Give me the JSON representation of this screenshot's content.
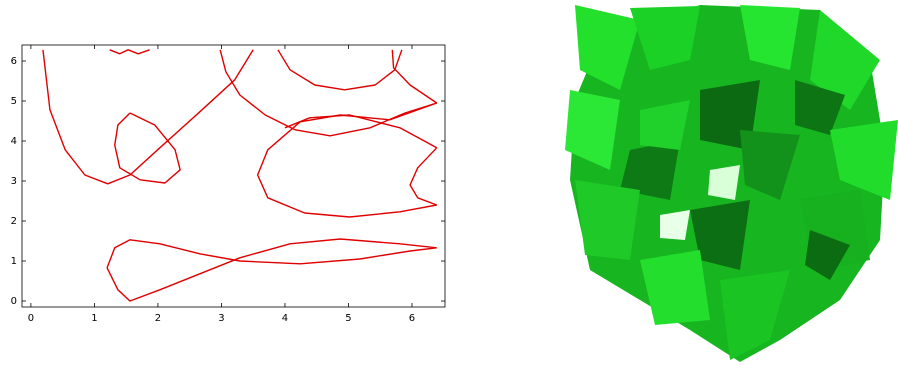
{
  "chart_data": {
    "type": "line",
    "xlim": [
      -0.14,
      6.52
    ],
    "ylim": [
      -0.15,
      6.4
    ],
    "xticks": [
      0,
      1,
      2,
      3,
      4,
      5,
      6
    ],
    "yticks": [
      0,
      1,
      2,
      3,
      4,
      5,
      6
    ],
    "series": [
      {
        "color": "#e00000",
        "x": [
          0.19,
          0.3,
          0.54,
          0.85,
          1.21,
          1.56,
          2.03,
          2.66,
          3.21,
          3.5
        ],
        "values": [
          6.28,
          4.78,
          3.78,
          3.15,
          2.93,
          3.15,
          3.83,
          4.73,
          5.53,
          6.28
        ]
      },
      {
        "color": "#e00000",
        "x": [
          1.56,
          1.95,
          2.27,
          2.35,
          2.11,
          1.72,
          1.4,
          1.32,
          1.37,
          1.56
        ],
        "values": [
          4.7,
          4.4,
          3.78,
          3.28,
          2.95,
          3.03,
          3.33,
          3.9,
          4.4,
          4.7
        ]
      },
      {
        "color": "#e00000",
        "x": [
          1.24,
          1.4,
          1.53,
          1.69,
          1.87
        ],
        "values": [
          6.28,
          6.18,
          6.28,
          6.18,
          6.28
        ]
      },
      {
        "color": "#e00000",
        "x": [
          2.98,
          3.07,
          3.29,
          3.69,
          4.16,
          4.71,
          5.34,
          5.89,
          6.39
        ],
        "values": [
          6.28,
          5.73,
          5.15,
          4.65,
          4.28,
          4.13,
          4.33,
          4.7,
          4.95
        ]
      },
      {
        "color": "#e00000",
        "x": [
          3.89,
          4.08,
          4.47,
          4.94,
          5.42,
          5.73,
          5.84
        ],
        "values": [
          6.28,
          5.78,
          5.4,
          5.28,
          5.4,
          5.78,
          6.28
        ]
      },
      {
        "color": "#e00000",
        "x": [
          5.69,
          5.71,
          5.97,
          6.39
        ],
        "values": [
          6.28,
          5.83,
          5.4,
          4.95
        ]
      },
      {
        "color": "#e00000",
        "x": [
          6.39,
          5.65,
          4.87,
          4.24,
          3.73,
          3.57,
          3.73,
          4.31,
          5.02,
          5.81,
          6.39
        ],
        "values": [
          4.95,
          4.53,
          4.65,
          4.48,
          3.78,
          3.15,
          2.58,
          2.2,
          2.1,
          2.23,
          2.4
        ]
      },
      {
        "color": "#e00000",
        "x": [
          6.39,
          5.81,
          5.02,
          4.39,
          4.0
        ],
        "values": [
          3.83,
          4.33,
          4.65,
          4.58,
          4.33
        ]
      },
      {
        "color": "#e00000",
        "x": [
          6.39,
          6.09,
          5.97,
          6.09,
          6.39
        ],
        "values": [
          3.83,
          3.33,
          2.9,
          2.58,
          2.4
        ]
      },
      {
        "color": "#e00000",
        "x": [
          6.39,
          5.81,
          4.87,
          4.08,
          3.29,
          2.66,
          2.03,
          1.56,
          1.37,
          1.2,
          1.32,
          1.56,
          2.03,
          2.66,
          3.29,
          4.24,
          5.18,
          5.97,
          6.39
        ],
        "values": [
          1.33,
          1.43,
          1.55,
          1.43,
          1.08,
          0.68,
          0.28,
          0.0,
          0.28,
          0.83,
          1.33,
          1.53,
          1.43,
          1.18,
          1.0,
          0.93,
          1.05,
          1.25,
          1.33
        ]
      }
    ]
  }
}
